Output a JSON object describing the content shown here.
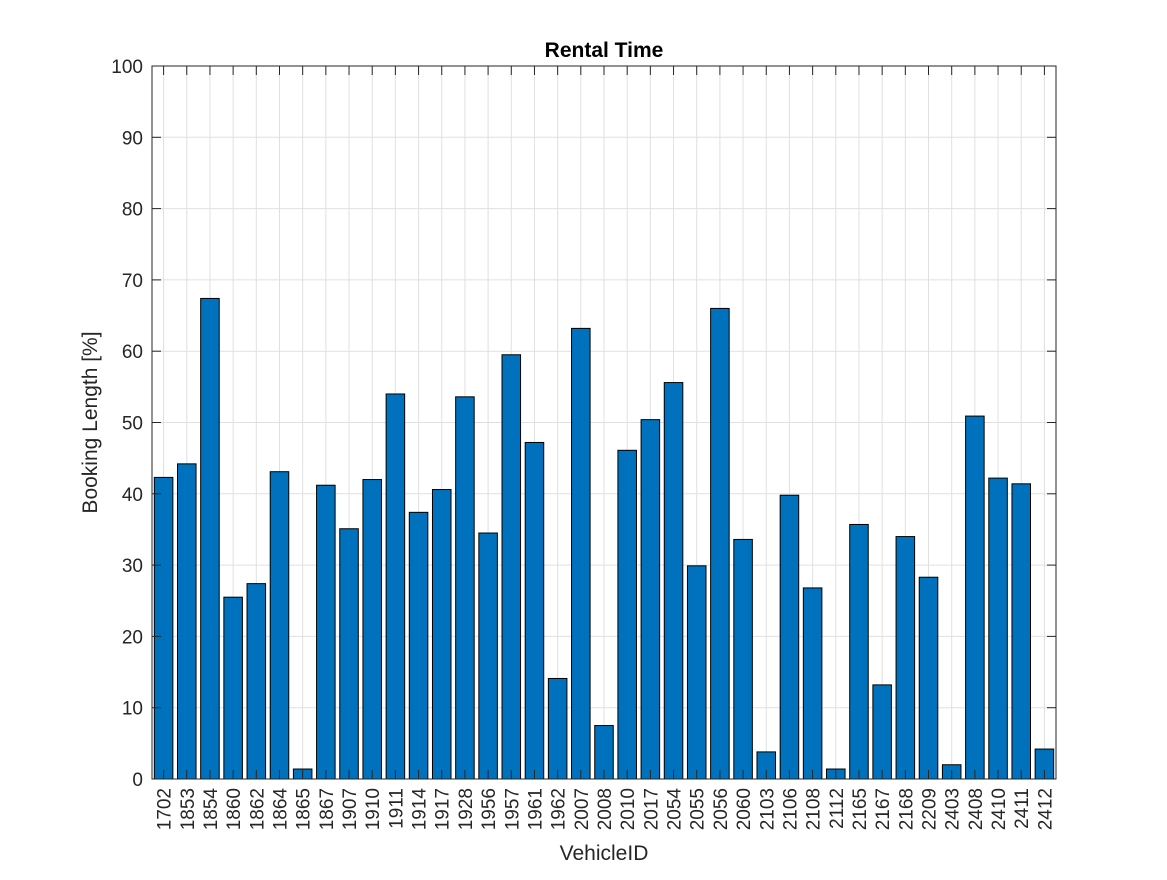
{
  "chart_data": {
    "type": "bar",
    "title": "Rental Time",
    "xlabel": "VehicleID",
    "ylabel": "Booking Length [%]",
    "ylim": [
      0,
      100
    ],
    "yticks": [
      0,
      10,
      20,
      30,
      40,
      50,
      60,
      70,
      80,
      90,
      100
    ],
    "grid": true,
    "bar_color": "#0072BD",
    "categories": [
      "1702",
      "1853",
      "1854",
      "1860",
      "1862",
      "1864",
      "1865",
      "1867",
      "1907",
      "1910",
      "1911",
      "1914",
      "1917",
      "1928",
      "1956",
      "1957",
      "1961",
      "1962",
      "2007",
      "2008",
      "2010",
      "2017",
      "2054",
      "2055",
      "2056",
      "2060",
      "2103",
      "2106",
      "2108",
      "2112",
      "2165",
      "2167",
      "2168",
      "2209",
      "2403",
      "2408",
      "2410",
      "2411",
      "2412"
    ],
    "values": [
      42.3,
      44.2,
      67.4,
      25.5,
      27.4,
      43.1,
      1.4,
      41.2,
      35.1,
      42.0,
      54.0,
      37.4,
      40.6,
      53.6,
      34.5,
      59.5,
      47.2,
      14.1,
      63.2,
      7.5,
      46.1,
      50.4,
      55.6,
      29.9,
      66.0,
      33.6,
      3.8,
      39.8,
      26.8,
      1.4,
      35.7,
      13.2,
      34.0,
      28.3,
      2.0,
      50.9,
      42.2,
      41.4,
      4.2
    ]
  }
}
